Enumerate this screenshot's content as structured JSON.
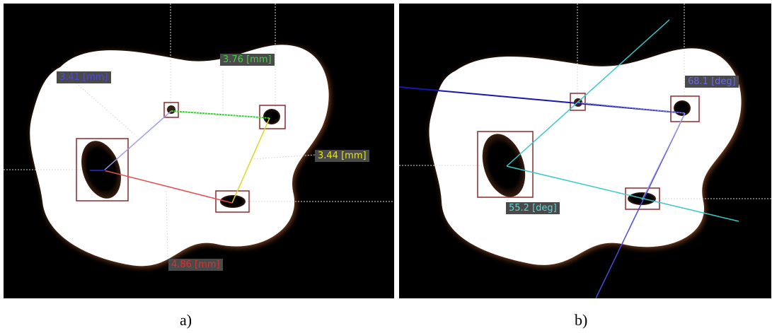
{
  "panel_a": {
    "caption": "a)",
    "measurements": [
      {
        "text": "3.41 [mm]",
        "color": "#3a3ad8"
      },
      {
        "text": "3.76 [mm]",
        "color": "#37c837"
      },
      {
        "text": "3.44 [mm]",
        "color": "#e6e600"
      },
      {
        "text": "4.86 [mm]",
        "color": "#e03030"
      }
    ]
  },
  "panel_b": {
    "caption": "b)",
    "measurements": [
      {
        "text": "68.1 [deg]",
        "color": "#6a6ae6"
      },
      {
        "text": "55.2 [deg]",
        "color": "#5ad6d6"
      }
    ]
  },
  "colors": {
    "background": "#000000",
    "shape_fill": "#ffffff",
    "shape_halo": "#6b3a1e",
    "roi_box": "#8b2a2a",
    "guide_line": "#d0d0d0"
  }
}
